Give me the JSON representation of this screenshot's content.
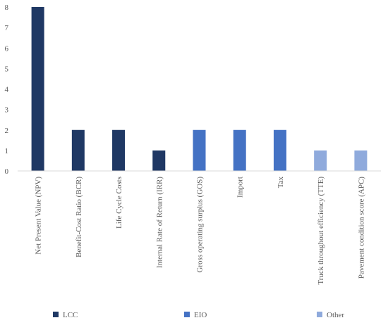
{
  "chart_data": {
    "type": "bar",
    "categories": [
      "Net Present Value (NPV)",
      "Benefit-Cost Ratio (BCR)",
      "Life Cycle Costs",
      "Internal Rate of Return (IRR)",
      "Gross operating surplus (GOS)",
      "Import",
      "Tax",
      "Truck throughout efficiency (TTE)",
      "Pavement condition score (APC)"
    ],
    "values": [
      8,
      2,
      2,
      1,
      2,
      2,
      2,
      1,
      1
    ],
    "groups": [
      "LCC",
      "LCC",
      "LCC",
      "LCC",
      "EIO",
      "EIO",
      "EIO",
      "Other",
      "Other"
    ],
    "legend": [
      {
        "name": "LCC",
        "color": "#1f3864"
      },
      {
        "name": "EIO",
        "color": "#4472c4"
      },
      {
        "name": "Other",
        "color": "#8faadc"
      }
    ],
    "yticks": [
      "0",
      "1",
      "2",
      "3",
      "4",
      "5",
      "6",
      "7",
      "8"
    ],
    "ylim": [
      0,
      8
    ],
    "title": "",
    "xlabel": "",
    "ylabel": "",
    "grid": false,
    "legend_position": "bottom"
  }
}
